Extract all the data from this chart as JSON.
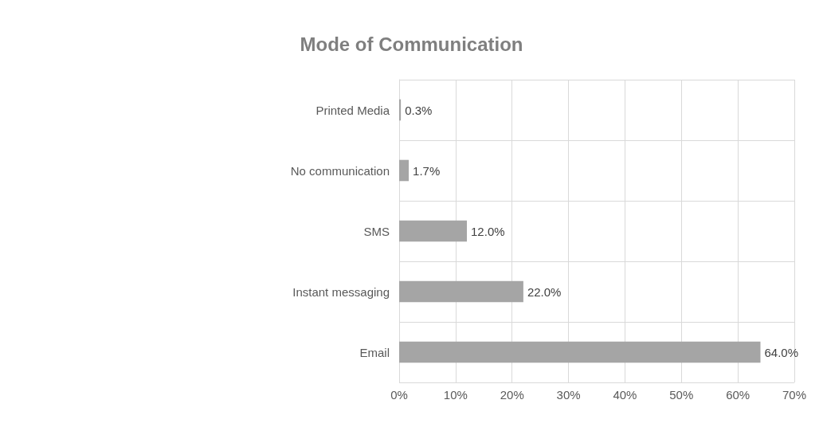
{
  "chart_data": {
    "type": "bar",
    "orientation": "horizontal",
    "title": "Mode of Communication",
    "categories": [
      "Printed Media",
      "No communication",
      "SMS",
      "Instant messaging",
      "Email"
    ],
    "values": [
      0.3,
      1.7,
      12.0,
      22.0,
      64.0
    ],
    "value_labels": [
      "0.3%",
      "1.7%",
      "12.0%",
      "22.0%",
      "64.0%"
    ],
    "color": "#a5a5a5",
    "xlim": [
      0,
      70
    ],
    "xticks": [
      {
        "value": 0,
        "label": "0%"
      },
      {
        "value": 10,
        "label": "10%"
      },
      {
        "value": 20,
        "label": "20%"
      },
      {
        "value": 30,
        "label": "30%"
      },
      {
        "value": 40,
        "label": "40%"
      },
      {
        "value": 50,
        "label": "50%"
      },
      {
        "value": 60,
        "label": "60%"
      },
      {
        "value": 70,
        "label": "70%"
      }
    ],
    "grid": true
  }
}
